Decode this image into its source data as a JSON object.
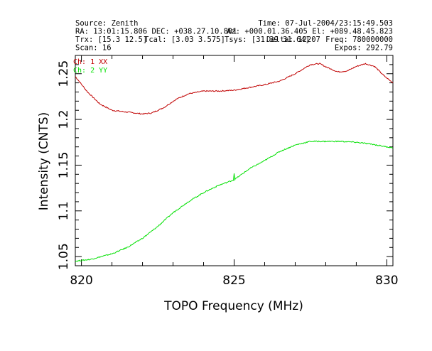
{
  "header": {
    "source": "Source: Zenith",
    "time": "Time: 07-Jul-2004/23:15:49.503",
    "ra_dec": "RA: 13:01:15.806 DEC: +038.27.10.801",
    "az_el": "Az: +000.01.36.405 El: +089.48.45.823",
    "trx": "Trx: [15.3 12.5]",
    "tcal": "Tcal: [3.03 3.575]",
    "tsys": "Tsys: [31.39 31.64]",
    "deltaf": "Delta: 12207",
    "freq": "Freq: 780000000",
    "scan": "Scan: 16",
    "expos": "Expos: 292.79"
  },
  "chart_data": {
    "type": "line",
    "title": "",
    "xlabel": "TOPO Frequency (MHz)",
    "ylabel": "Intensity (CNTS)",
    "xlim": [
      819.8,
      830.2
    ],
    "ylim": [
      1.04,
      1.27
    ],
    "x_ticks": [
      "820",
      "825",
      "830"
    ],
    "x_tick_values": [
      820,
      825,
      830
    ],
    "y_ticks": [
      "1.05",
      "1.1",
      "1.15",
      "1.2",
      "1.25"
    ],
    "y_tick_values": [
      1.05,
      1.1,
      1.15,
      1.2,
      1.25
    ],
    "grid": false,
    "legend_position": "top-left",
    "series": [
      {
        "name": "Ch: 1 XX",
        "color": "#c00000",
        "x": [
          819.8,
          820.2,
          820.6,
          821.0,
          821.5,
          822.0,
          822.3,
          822.7,
          823.1,
          823.5,
          824.0,
          824.5,
          825.0,
          825.5,
          826.0,
          826.5,
          827.0,
          827.5,
          827.8,
          828.1,
          828.4,
          828.7,
          829.0,
          829.3,
          829.6,
          829.9,
          830.2
        ],
        "y": [
          1.247,
          1.23,
          1.217,
          1.21,
          1.208,
          1.206,
          1.207,
          1.213,
          1.222,
          1.228,
          1.231,
          1.231,
          1.232,
          1.235,
          1.238,
          1.242,
          1.25,
          1.26,
          1.261,
          1.256,
          1.252,
          1.253,
          1.258,
          1.261,
          1.258,
          1.248,
          1.24
        ]
      },
      {
        "name": "Ch: 2 YY",
        "color": "#00e000",
        "x": [
          819.8,
          820.3,
          821.0,
          821.5,
          822.0,
          822.5,
          823.0,
          823.5,
          824.0,
          824.5,
          825.0,
          825.5,
          826.0,
          826.5,
          827.0,
          827.5,
          828.0,
          828.5,
          829.0,
          829.5,
          830.0,
          830.2
        ],
        "y": [
          1.045,
          1.047,
          1.053,
          1.06,
          1.07,
          1.083,
          1.098,
          1.11,
          1.12,
          1.128,
          1.134,
          1.146,
          1.155,
          1.165,
          1.172,
          1.176,
          1.176,
          1.176,
          1.175,
          1.173,
          1.17,
          1.169
        ]
      }
    ]
  }
}
